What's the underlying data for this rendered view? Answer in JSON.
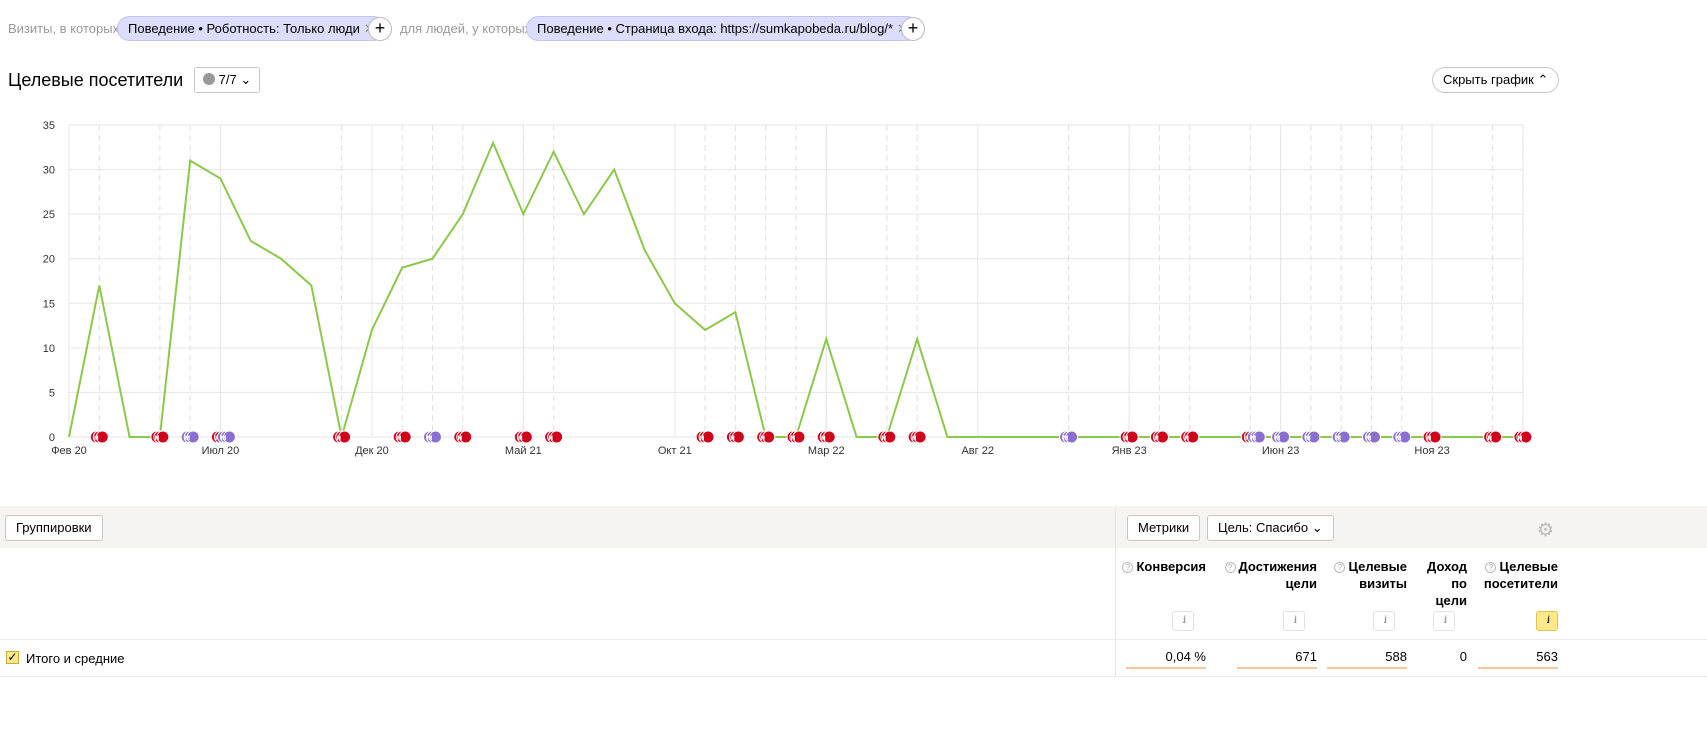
{
  "filters": {
    "prefix1": "Визиты, в которых",
    "chip1": "Поведение • Роботность: Только люди",
    "prefix2": "для людей, у которых",
    "chip2": "Поведение • Страница входа: https://sumkapobeda.ru/blog/*"
  },
  "header": {
    "title": "Целевые посетители",
    "annotations_count": "7/7",
    "hide_chart": "Скрыть график"
  },
  "chart_data": {
    "type": "line",
    "title": "",
    "xlabel": "",
    "ylabel": "",
    "ylim": [
      0,
      35
    ],
    "yticks": [
      "0",
      "5",
      "10",
      "15",
      "20",
      "25",
      "30",
      "35"
    ],
    "x_tick_labels": [
      "Фев 20",
      "Июл 20",
      "Дек 20",
      "Май 21",
      "Окт 21",
      "Мар 22",
      "Авг 22",
      "Янв 23",
      "Июн 23",
      "Ноя 23"
    ],
    "x_start": "2020-02",
    "x_end": "2024-02",
    "interval": "month",
    "grid": true,
    "color": "#8cc84b",
    "values": [
      0,
      17,
      0,
      0,
      31,
      29,
      22,
      20,
      17,
      0,
      12,
      19,
      20,
      25,
      33,
      25,
      32,
      25,
      30,
      21,
      15,
      12,
      14,
      0,
      0,
      11,
      0,
      0,
      11,
      0,
      0,
      0,
      0,
      0,
      0,
      0,
      0,
      0,
      0,
      0,
      0,
      0,
      0,
      0,
      0,
      0,
      0,
      0,
      0
    ],
    "annotations": [
      {
        "m": 1,
        "t": "н"
      },
      {
        "m": 3,
        "t": "н"
      },
      {
        "m": 4,
        "t": "м"
      },
      {
        "m": 5,
        "t": "н"
      },
      {
        "m": 5,
        "t": "м"
      },
      {
        "m": 9,
        "t": "н"
      },
      {
        "m": 11,
        "t": "н"
      },
      {
        "m": 12,
        "t": "м"
      },
      {
        "m": 13,
        "t": "н"
      },
      {
        "m": 15,
        "t": "н"
      },
      {
        "m": 16,
        "t": "н"
      },
      {
        "m": 21,
        "t": "н"
      },
      {
        "m": 22,
        "t": "н"
      },
      {
        "m": 23,
        "t": "н"
      },
      {
        "m": 24,
        "t": "н"
      },
      {
        "m": 25,
        "t": "н"
      },
      {
        "m": 27,
        "t": "н"
      },
      {
        "m": 28,
        "t": "н"
      },
      {
        "m": 33,
        "t": "м"
      },
      {
        "m": 35,
        "t": "н"
      },
      {
        "m": 36,
        "t": "н"
      },
      {
        "m": 37,
        "t": "н"
      },
      {
        "m": 39,
        "t": "н"
      },
      {
        "m": 39,
        "t": "м"
      },
      {
        "m": 40,
        "t": "м"
      },
      {
        "m": 41,
        "t": "м"
      },
      {
        "m": 42,
        "t": "м"
      },
      {
        "m": 43,
        "t": "м"
      },
      {
        "m": 44,
        "t": "м"
      },
      {
        "m": 45,
        "t": "н"
      },
      {
        "m": 47,
        "t": "н"
      },
      {
        "m": 48,
        "t": "н"
      }
    ]
  },
  "toolbar": {
    "groupings": "Группировки",
    "metrics": "Метрики",
    "goal": "Цель: Спасибо"
  },
  "table": {
    "columns": [
      {
        "l1": "Конверсия",
        "l2": "",
        "l3": "",
        "help": true
      },
      {
        "l1": "Достижения",
        "l2": "цели",
        "l3": "",
        "help": true
      },
      {
        "l1": "Целевые",
        "l2": "визиты",
        "l3": "",
        "help": true
      },
      {
        "l1": "Доход",
        "l2": "по",
        "l3": "цели",
        "help": false
      },
      {
        "l1": "Целевые",
        "l2": "посетители",
        "l3": "",
        "help": true
      }
    ],
    "total_label": "Итого и средние",
    "totals": [
      "0,04 %",
      "671",
      "588",
      "0",
      "563"
    ]
  }
}
